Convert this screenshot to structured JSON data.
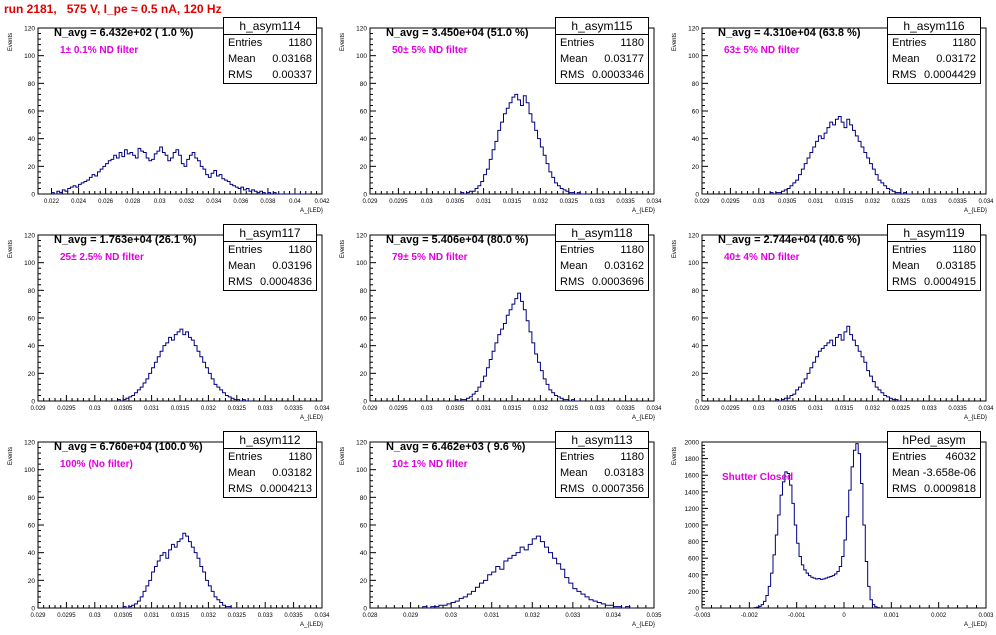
{
  "title": "run 2181,   575 V, I_pe ≈ 0.5 nA, 120 Hz",
  "colors": {
    "title": "#e00000",
    "histogram_line": "#000080",
    "filter_text": "#e000e0",
    "axes": "#000000"
  },
  "chart_data": [
    {
      "type": "histogram",
      "name": "h_asym114",
      "n_avg": "N_avg = 6.432e+02 ( 1.0 %)",
      "filter": "1± 0.1% ND filter",
      "stats": {
        "Entries": "1180",
        "Mean": "0.03168",
        "RMS": "0.00337"
      },
      "xlabel": "A_{LED}",
      "ylabel": "Events",
      "xlim": [
        0.021,
        0.042
      ],
      "ylim": [
        0,
        120
      ],
      "xticks": [
        "0.022",
        "0.024",
        "0.026",
        "0.028",
        "0.03",
        "0.032",
        "0.034",
        "0.036",
        "0.038",
        "0.04",
        "0.042"
      ],
      "xtick_values": [
        0.022,
        0.024,
        0.026,
        0.028,
        0.03,
        0.032,
        0.034,
        0.036,
        0.038,
        0.04,
        0.042
      ],
      "yticks": [
        0,
        20,
        40,
        60,
        80,
        100,
        120
      ],
      "bin_width": 0.0002,
      "bin_start": 0.022,
      "values": [
        1,
        0,
        2,
        1,
        3,
        2,
        4,
        5,
        6,
        5,
        7,
        8,
        9,
        10,
        12,
        14,
        13,
        16,
        18,
        20,
        22,
        24,
        25,
        28,
        26,
        30,
        27,
        32,
        29,
        30,
        28,
        26,
        33,
        31,
        30,
        26,
        24,
        25,
        29,
        31,
        34,
        30,
        28,
        24,
        26,
        30,
        32,
        28,
        22,
        20,
        25,
        28,
        30,
        26,
        24,
        20,
        18,
        14,
        12,
        15,
        17,
        13,
        14,
        11,
        10,
        9,
        7,
        6,
        5,
        4,
        5,
        3,
        4,
        2,
        3,
        2,
        1,
        2,
        1,
        0,
        1,
        0,
        1,
        0,
        0,
        0,
        0,
        0,
        0,
        0,
        0,
        0,
        0,
        0,
        0
      ]
    },
    {
      "type": "histogram",
      "name": "h_asym115",
      "n_avg": "N_avg = 3.450e+04 (51.0 %)",
      "filter": "50± 5% ND filter",
      "stats": {
        "Entries": "1180",
        "Mean": "0.03177",
        "RMS": "0.0003346"
      },
      "xlabel": "A_{LED}",
      "ylabel": "Events",
      "xlim": [
        0.029,
        0.034
      ],
      "ylim": [
        0,
        120
      ],
      "xticks": [
        "0.029",
        "0.0295",
        "0.03",
        "0.0305",
        "0.031",
        "0.0315",
        "0.032",
        "0.0325",
        "0.033",
        "0.0335",
        "0.034"
      ],
      "xtick_values": [
        0.029,
        0.0295,
        0.03,
        0.0305,
        0.031,
        0.0315,
        0.032,
        0.0325,
        0.033,
        0.0335,
        0.034
      ],
      "yticks": [
        0,
        20,
        40,
        60,
        80,
        100,
        120
      ],
      "bin_width": 5e-05,
      "bin_start": 0.0306,
      "values": [
        1,
        0,
        1,
        2,
        2,
        4,
        6,
        9,
        14,
        18,
        25,
        32,
        38,
        46,
        52,
        58,
        62,
        66,
        70,
        72,
        68,
        64,
        71,
        66,
        58,
        52,
        46,
        40,
        34,
        28,
        22,
        16,
        12,
        8,
        6,
        4,
        3,
        2,
        1,
        1,
        0,
        1,
        0,
        0,
        0
      ]
    },
    {
      "type": "histogram",
      "name": "h_asym116",
      "n_avg": "N_avg = 4.310e+04 (63.8 %)",
      "filter": "63± 5% ND filter",
      "stats": {
        "Entries": "1180",
        "Mean": "0.03172",
        "RMS": "0.0004429"
      },
      "xlabel": "A_{LED}",
      "ylabel": "Events",
      "xlim": [
        0.029,
        0.034
      ],
      "ylim": [
        0,
        120
      ],
      "xticks": [
        "0.029",
        "0.0295",
        "0.03",
        "0.0305",
        "0.031",
        "0.0315",
        "0.032",
        "0.0325",
        "0.033",
        "0.0335",
        "0.034"
      ],
      "xtick_values": [
        0.029,
        0.0295,
        0.03,
        0.0305,
        0.031,
        0.0315,
        0.032,
        0.0325,
        0.033,
        0.0335,
        0.034
      ],
      "yticks": [
        0,
        20,
        40,
        60,
        80,
        100,
        120
      ],
      "bin_width": 5e-05,
      "bin_start": 0.0302,
      "values": [
        1,
        0,
        1,
        1,
        2,
        3,
        4,
        6,
        8,
        10,
        14,
        18,
        22,
        26,
        30,
        34,
        38,
        42,
        40,
        44,
        48,
        52,
        50,
        54,
        56,
        52,
        48,
        54,
        50,
        46,
        42,
        38,
        34,
        30,
        26,
        22,
        18,
        14,
        10,
        8,
        6,
        4,
        3,
        2,
        1,
        1,
        0,
        1,
        0,
        0
      ]
    },
    {
      "type": "histogram",
      "name": "h_asym117",
      "n_avg": "N_avg = 1.763e+04 (26.1 %)",
      "filter": "25± 2.5% ND filter",
      "stats": {
        "Entries": "1180",
        "Mean": "0.03196",
        "RMS": "0.0004836"
      },
      "xlabel": "A_{LED}",
      "ylabel": "Events",
      "xlim": [
        0.029,
        0.034
      ],
      "ylim": [
        0,
        120
      ],
      "xticks": [
        "0.029",
        "0.0295",
        "0.03",
        "0.0305",
        "0.031",
        "0.0315",
        "0.032",
        "0.0325",
        "0.033",
        "0.0335",
        "0.034"
      ],
      "xtick_values": [
        0.029,
        0.0295,
        0.03,
        0.0305,
        0.031,
        0.0315,
        0.032,
        0.0325,
        0.033,
        0.0335,
        0.034
      ],
      "yticks": [
        0,
        20,
        40,
        60,
        80,
        100,
        120
      ],
      "bin_width": 5e-05,
      "bin_start": 0.0304,
      "values": [
        1,
        0,
        1,
        2,
        3,
        4,
        6,
        8,
        10,
        13,
        16,
        20,
        24,
        28,
        32,
        36,
        40,
        42,
        46,
        44,
        48,
        50,
        52,
        48,
        50,
        46,
        44,
        40,
        36,
        32,
        28,
        24,
        20,
        16,
        12,
        10,
        8,
        6,
        4,
        3,
        2,
        1,
        1,
        0,
        1,
        0,
        0
      ]
    },
    {
      "type": "histogram",
      "name": "h_asym118",
      "n_avg": "N_avg = 5.406e+04 (80.0 %)",
      "filter": "79± 5% ND filter",
      "stats": {
        "Entries": "1180",
        "Mean": "0.03162",
        "RMS": "0.0003696"
      },
      "xlabel": "A_{LED}",
      "ylabel": "Events",
      "xlim": [
        0.029,
        0.034
      ],
      "ylim": [
        0,
        120
      ],
      "xticks": [
        "0.029",
        "0.0295",
        "0.03",
        "0.0305",
        "0.031",
        "0.0315",
        "0.032",
        "0.0325",
        "0.033",
        "0.0335",
        "0.034"
      ],
      "xtick_values": [
        0.029,
        0.0295,
        0.03,
        0.0305,
        0.031,
        0.0315,
        0.032,
        0.0325,
        0.033,
        0.0335,
        0.034
      ],
      "yticks": [
        0,
        20,
        40,
        60,
        80,
        100,
        120
      ],
      "bin_width": 5e-05,
      "bin_start": 0.0305,
      "values": [
        1,
        0,
        1,
        1,
        2,
        3,
        5,
        7,
        10,
        14,
        18,
        24,
        30,
        36,
        42,
        48,
        52,
        56,
        62,
        66,
        70,
        74,
        78,
        72,
        66,
        58,
        50,
        42,
        34,
        28,
        22,
        16,
        12,
        8,
        6,
        4,
        3,
        2,
        1,
        1,
        0,
        1,
        0,
        0
      ]
    },
    {
      "type": "histogram",
      "name": "h_asym119",
      "n_avg": "N_avg = 2.744e+04 (40.6 %)",
      "filter": "40± 4% ND filter",
      "stats": {
        "Entries": "1180",
        "Mean": "0.03185",
        "RMS": "0.0004915"
      },
      "xlabel": "A_{LED}",
      "ylabel": "Events",
      "xlim": [
        0.029,
        0.034
      ],
      "ylim": [
        0,
        120
      ],
      "xticks": [
        "0.029",
        "0.0295",
        "0.03",
        "0.0305",
        "0.031",
        "0.0315",
        "0.032",
        "0.0325",
        "0.033",
        "0.0335",
        "0.034"
      ],
      "xtick_values": [
        0.029,
        0.0295,
        0.03,
        0.0305,
        0.031,
        0.0315,
        0.032,
        0.0325,
        0.033,
        0.0335,
        0.034
      ],
      "yticks": [
        0,
        20,
        40,
        60,
        80,
        100,
        120
      ],
      "bin_width": 5e-05,
      "bin_start": 0.0303,
      "values": [
        1,
        0,
        1,
        2,
        2,
        4,
        5,
        8,
        10,
        13,
        16,
        20,
        24,
        28,
        32,
        36,
        38,
        40,
        42,
        44,
        40,
        46,
        48,
        44,
        50,
        54,
        48,
        44,
        40,
        36,
        32,
        28,
        22,
        18,
        14,
        10,
        8,
        6,
        4,
        3,
        2,
        1,
        1,
        0,
        0
      ]
    },
    {
      "type": "histogram",
      "name": "h_asym112",
      "n_avg": "N_avg = 6.760e+04 (100.0 %)",
      "filter": "100% (No filter)",
      "stats": {
        "Entries": "1180",
        "Mean": "0.03182",
        "RMS": "0.0004213"
      },
      "xlabel": "A_{LED}",
      "ylabel": "Events",
      "xlim": [
        0.029,
        0.034
      ],
      "ylim": [
        0,
        120
      ],
      "xticks": [
        "0.029",
        "0.0295",
        "0.03",
        "0.0305",
        "0.031",
        "0.0315",
        "0.032",
        "0.0325",
        "0.033",
        "0.0335",
        "0.034"
      ],
      "xtick_values": [
        0.029,
        0.0295,
        0.03,
        0.0305,
        0.031,
        0.0315,
        0.032,
        0.0325,
        0.033,
        0.0335,
        0.034
      ],
      "yticks": [
        0,
        20,
        40,
        60,
        80,
        100,
        120
      ],
      "bin_width": 5e-05,
      "bin_start": 0.0305,
      "values": [
        1,
        0,
        1,
        2,
        3,
        5,
        8,
        12,
        16,
        20,
        26,
        30,
        34,
        38,
        40,
        36,
        42,
        46,
        44,
        48,
        50,
        54,
        52,
        48,
        44,
        40,
        36,
        30,
        26,
        20,
        16,
        12,
        8,
        6,
        4,
        2,
        1,
        1,
        0,
        0
      ]
    },
    {
      "type": "histogram",
      "name": "h_asym113",
      "n_avg": "N_avg = 6.462e+03 ( 9.6 %)",
      "filter": "10± 1% ND filter",
      "stats": {
        "Entries": "1180",
        "Mean": "0.03183",
        "RMS": "0.0007356"
      },
      "xlabel": "A_{LED}",
      "ylabel": "Events",
      "xlim": [
        0.028,
        0.035
      ],
      "ylim": [
        0,
        120
      ],
      "xticks": [
        "0.028",
        "0.029",
        "0.03",
        "0.031",
        "0.032",
        "0.033",
        "0.034",
        "0.035"
      ],
      "xtick_values": [
        0.028,
        0.029,
        0.03,
        0.031,
        0.032,
        0.033,
        0.034,
        0.035
      ],
      "yticks": [
        0,
        20,
        40,
        60,
        80,
        100,
        120
      ],
      "bin_width": 0.0001,
      "bin_start": 0.0293,
      "values": [
        1,
        0,
        1,
        1,
        2,
        2,
        3,
        4,
        5,
        7,
        8,
        10,
        12,
        15,
        18,
        20,
        24,
        26,
        30,
        28,
        34,
        36,
        38,
        40,
        44,
        42,
        46,
        50,
        52,
        48,
        44,
        40,
        36,
        32,
        28,
        22,
        18,
        14,
        12,
        10,
        8,
        6,
        5,
        4,
        3,
        2,
        2,
        1,
        1,
        0,
        1,
        0
      ]
    },
    {
      "type": "histogram",
      "name": "hPed_asym",
      "n_avg": "",
      "filter": "Shutter Closed",
      "stats": {
        "Entries": "46032",
        "Mean": "-3.658e-06",
        "RMS": "0.0009818"
      },
      "xlabel": "A_{LED}",
      "ylabel": "Events",
      "xlim": [
        -0.003,
        0.003
      ],
      "ylim": [
        0,
        2000
      ],
      "xticks": [
        "-0.003",
        "-0.002",
        "-0.001",
        "0",
        "0.001",
        "0.002",
        "0.003"
      ],
      "xtick_values": [
        -0.003,
        -0.002,
        -0.001,
        0,
        0.001,
        0.002,
        0.003
      ],
      "yticks": [
        0,
        200,
        400,
        600,
        800,
        1000,
        1200,
        1400,
        1600,
        1800,
        2000
      ],
      "bin_width": 5e-05,
      "bin_start": -0.0019,
      "values": [
        5,
        10,
        20,
        40,
        80,
        150,
        260,
        420,
        640,
        880,
        1120,
        1360,
        1520,
        1640,
        1620,
        1480,
        1260,
        1000,
        780,
        620,
        520,
        460,
        420,
        390,
        370,
        360,
        350,
        355,
        345,
        350,
        360,
        370,
        380,
        390,
        410,
        440,
        500,
        620,
        820,
        1100,
        1420,
        1700,
        1900,
        1980,
        1860,
        1500,
        1000,
        560,
        260,
        100,
        40,
        15,
        5
      ]
    }
  ]
}
